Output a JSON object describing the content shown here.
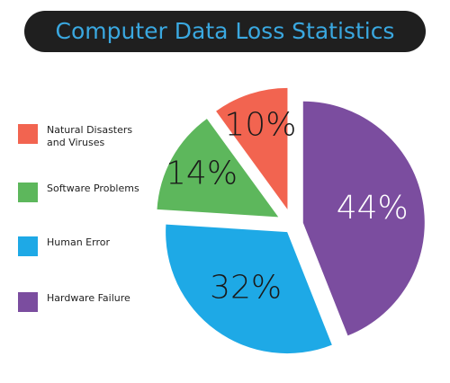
{
  "chart_data": {
    "type": "pie",
    "title": "Computer Data Loss Statistics",
    "categories": [
      "Natural Disasters and Viruses",
      "Software Problems",
      "Human Error",
      "Hardware Failure"
    ],
    "values": [
      10,
      14,
      32,
      44
    ],
    "value_labels": [
      "10%",
      "14%",
      "32%",
      "44%"
    ],
    "colors": [
      "#f26450",
      "#5db75c",
      "#1ea9e6",
      "#7b4d9f"
    ],
    "legend": "left"
  }
}
